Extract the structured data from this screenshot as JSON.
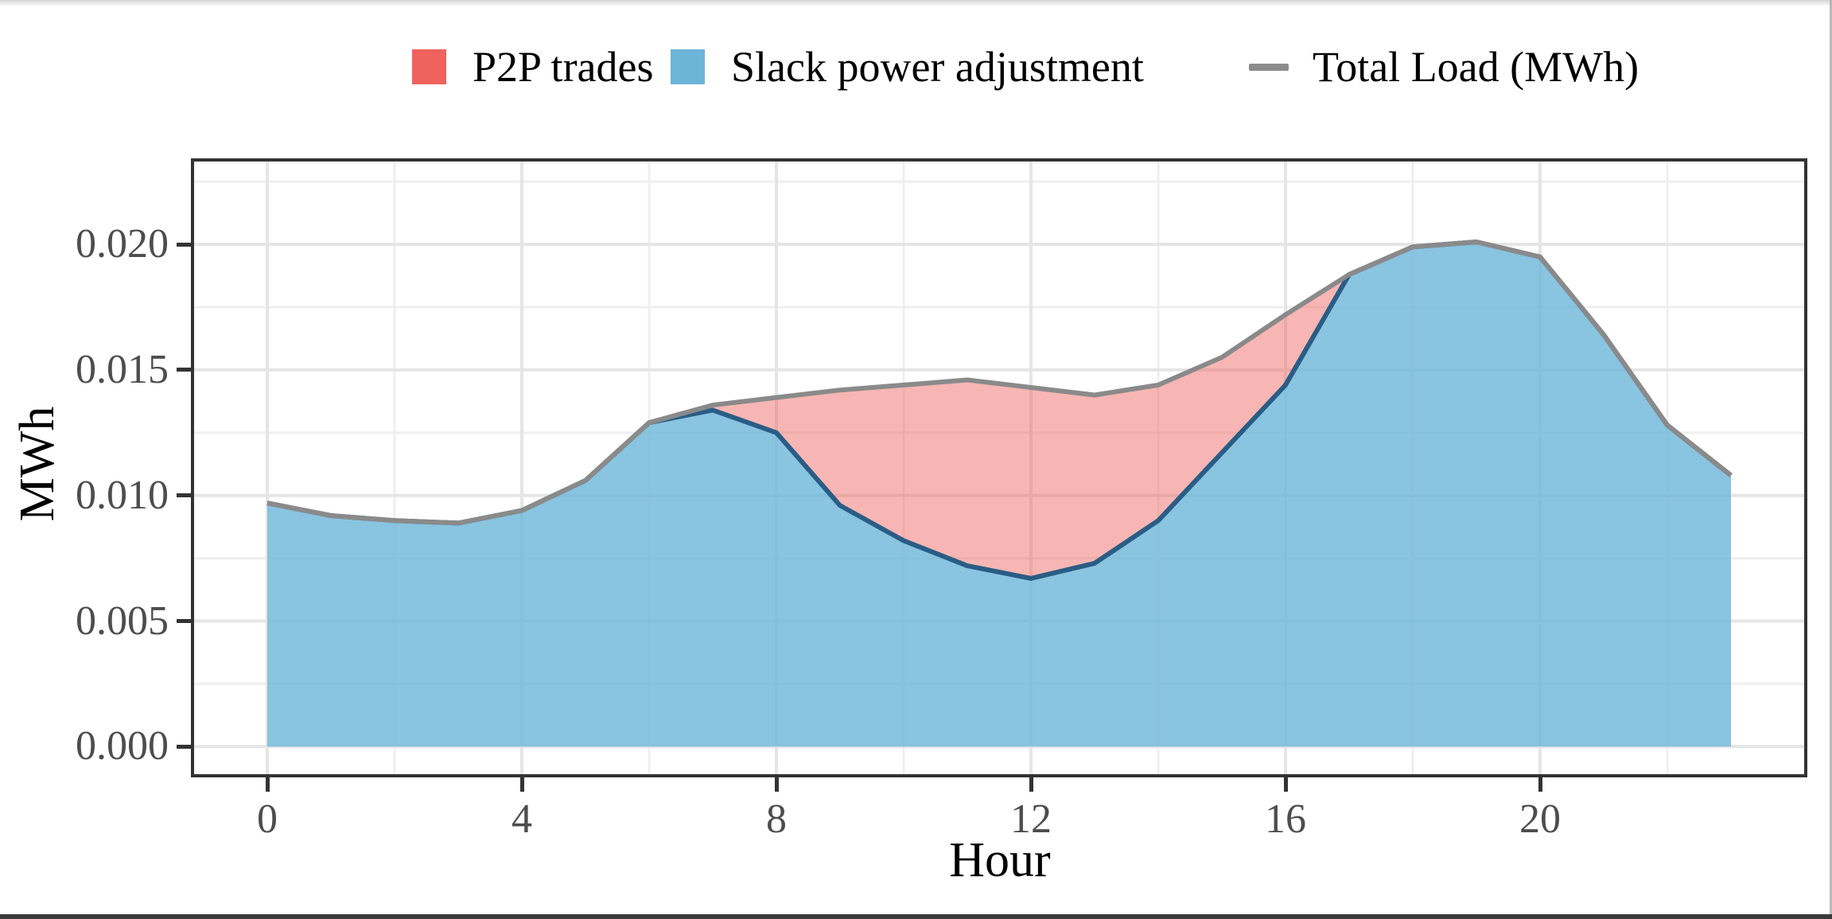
{
  "figure": {
    "background": "#ffffff",
    "bottom_bar_color": "#3a3a3a"
  },
  "legend": {
    "items": [
      {
        "label": "P2P trades",
        "swatch": "rect",
        "color": "#ee635d"
      },
      {
        "label": "Slack power adjustment",
        "swatch": "rect",
        "color": "#6cb5d8"
      },
      {
        "label": "Total Load (MWh)",
        "swatch": "line",
        "color": "#8c8c8c"
      }
    ]
  },
  "axes": {
    "x_title": "Hour",
    "y_title": "MWh",
    "x_tick_labels": [
      "0",
      "4",
      "8",
      "12",
      "16",
      "20"
    ],
    "x_tick_values": [
      0,
      4,
      8,
      12,
      16,
      20
    ],
    "y_tick_labels": [
      "0.000",
      "0.005",
      "0.010",
      "0.015",
      "0.020"
    ],
    "y_tick_values": [
      0,
      0.005,
      0.01,
      0.015,
      0.02
    ],
    "x_minor_values": [
      2,
      6,
      10,
      14,
      18,
      22
    ],
    "y_minor_values": [
      0.0025,
      0.0075,
      0.0125,
      0.0175,
      0.0225
    ]
  },
  "chart_data": {
    "type": "area",
    "title": "",
    "xlabel": "Hour",
    "ylabel": "MWh",
    "xlim": [
      -1.15,
      24.15
    ],
    "ylim": [
      -0.0011,
      0.0233
    ],
    "grid": true,
    "legend_position": "top",
    "x": [
      0,
      1,
      2,
      3,
      4,
      5,
      6,
      7,
      8,
      9,
      10,
      11,
      12,
      13,
      14,
      15,
      16,
      17,
      18,
      19,
      20,
      21,
      22,
      23
    ],
    "series": [
      {
        "name": "Total Load (MWh)",
        "type": "line",
        "color": "#8a8a8a",
        "values": [
          0.0097,
          0.0092,
          0.009,
          0.0089,
          0.0094,
          0.0106,
          0.0129,
          0.0136,
          0.0139,
          0.0142,
          0.0144,
          0.0146,
          0.0143,
          0.014,
          0.0144,
          0.0155,
          0.0172,
          0.0188,
          0.0199,
          0.0201,
          0.0195,
          0.0164,
          0.0128,
          0.0108
        ]
      },
      {
        "name": "Slack power adjustment",
        "type": "area",
        "fill": "rgba(108,181,216,0.8)",
        "edge_color": "#2a5d86",
        "values": [
          0.0097,
          0.0092,
          0.009,
          0.0089,
          0.0094,
          0.0106,
          0.0129,
          0.0134,
          0.0125,
          0.0096,
          0.0082,
          0.0072,
          0.0067,
          0.0073,
          0.009,
          0.0117,
          0.0144,
          0.0188,
          0.0199,
          0.0201,
          0.0195,
          0.0164,
          0.0128,
          0.0108
        ]
      },
      {
        "name": "P2P trades",
        "type": "area-between",
        "note": "region between slack power adjustment and total load",
        "fill": "rgba(238,99,93,0.47)",
        "values": [
          0,
          0,
          0,
          0,
          0,
          0,
          0,
          0.0002,
          0.0014,
          0.0046,
          0.0062,
          0.0074,
          0.0076,
          0.0067,
          0.0054,
          0.0038,
          0.0028,
          0,
          0,
          0,
          0,
          0,
          0,
          0
        ]
      }
    ],
    "grid_major_color": "#e5e5e5",
    "grid_minor_color": "#efefef"
  }
}
